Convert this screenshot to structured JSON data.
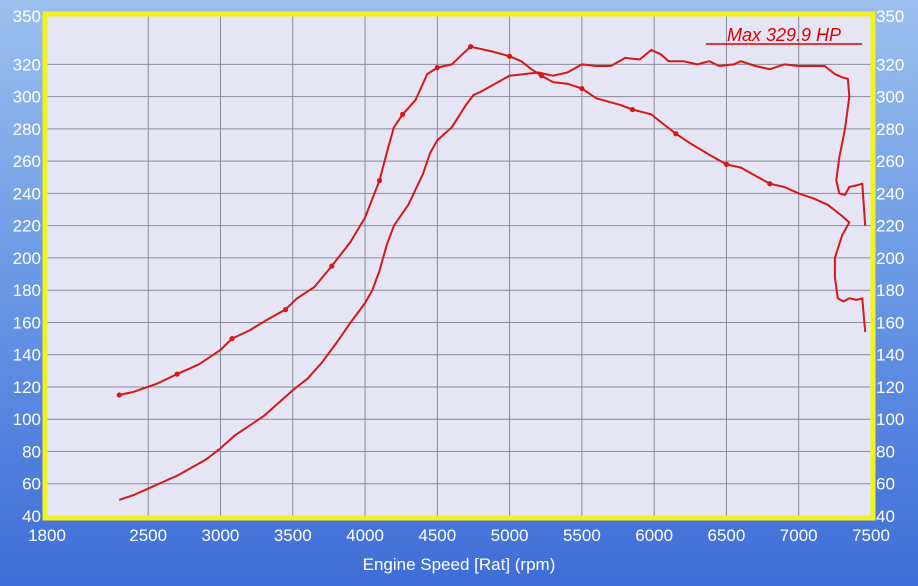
{
  "chart_data": {
    "type": "line",
    "xlabel": "Engine Speed [Rat] (rpm)",
    "ylabel": "",
    "xlim": [
      1800,
      7500
    ],
    "ylim": [
      40,
      350
    ],
    "x_ticks": [
      1800,
      2500,
      3000,
      3500,
      4000,
      4500,
      5000,
      5500,
      6000,
      6500,
      7000,
      7500
    ],
    "y_ticks": [
      40,
      60,
      80,
      100,
      120,
      140,
      160,
      180,
      200,
      220,
      240,
      260,
      280,
      300,
      320,
      350
    ],
    "annotation": "Max 329.9 HP",
    "grid": true,
    "colors": {
      "line": "#d51818",
      "plot_bg": "#e5e5f6",
      "frame": "#f2f21e",
      "grid": "#8a8a9a",
      "annotation": "#e00000"
    },
    "series": [
      {
        "values": [
          [
            2300,
            115
          ],
          [
            2400,
            117
          ],
          [
            2560,
            122
          ],
          [
            2700,
            128
          ],
          [
            2850,
            134
          ],
          [
            3000,
            143
          ],
          [
            3080,
            150
          ],
          [
            3200,
            155
          ],
          [
            3310,
            161
          ],
          [
            3450,
            168
          ],
          [
            3530,
            175
          ],
          [
            3650,
            182
          ],
          [
            3770,
            195
          ],
          [
            3900,
            210
          ],
          [
            4000,
            225
          ],
          [
            4100,
            248
          ],
          [
            4150,
            265
          ],
          [
            4200,
            281
          ],
          [
            4260,
            289
          ],
          [
            4350,
            298
          ],
          [
            4430,
            314
          ],
          [
            4500,
            318
          ],
          [
            4600,
            320
          ],
          [
            4670,
            326
          ],
          [
            4730,
            331
          ],
          [
            4780,
            330
          ],
          [
            4880,
            328
          ],
          [
            5000,
            325
          ],
          [
            5080,
            322
          ],
          [
            5150,
            317
          ],
          [
            5220,
            313
          ],
          [
            5300,
            309
          ],
          [
            5400,
            308
          ],
          [
            5500,
            305
          ],
          [
            5600,
            299
          ],
          [
            5760,
            295
          ],
          [
            5850,
            292
          ],
          [
            5980,
            289
          ],
          [
            6050,
            284
          ],
          [
            6150,
            277
          ],
          [
            6250,
            271
          ],
          [
            6400,
            263
          ],
          [
            6500,
            258
          ],
          [
            6600,
            256
          ],
          [
            6700,
            251
          ],
          [
            6800,
            246
          ],
          [
            6900,
            244
          ],
          [
            7000,
            240
          ],
          [
            7100,
            237
          ],
          [
            7200,
            233
          ],
          [
            7300,
            226
          ],
          [
            7350,
            222
          ],
          [
            7300,
            214
          ],
          [
            7250,
            200
          ],
          [
            7250,
            188
          ],
          [
            7270,
            175
          ],
          [
            7310,
            173
          ],
          [
            7350,
            175
          ],
          [
            7400,
            174
          ],
          [
            7440,
            175
          ],
          [
            7460,
            154
          ]
        ]
      },
      {
        "values": [
          [
            2300,
            50
          ],
          [
            2400,
            53
          ],
          [
            2500,
            57
          ],
          [
            2600,
            61
          ],
          [
            2700,
            65
          ],
          [
            2800,
            70
          ],
          [
            2900,
            75
          ],
          [
            3000,
            82
          ],
          [
            3100,
            90
          ],
          [
            3200,
            96
          ],
          [
            3300,
            102
          ],
          [
            3400,
            110
          ],
          [
            3500,
            118
          ],
          [
            3600,
            125
          ],
          [
            3700,
            135
          ],
          [
            3800,
            147
          ],
          [
            3900,
            160
          ],
          [
            4000,
            172
          ],
          [
            4050,
            180
          ],
          [
            4100,
            192
          ],
          [
            4150,
            208
          ],
          [
            4200,
            220
          ],
          [
            4300,
            233
          ],
          [
            4400,
            252
          ],
          [
            4450,
            265
          ],
          [
            4500,
            273
          ],
          [
            4600,
            281
          ],
          [
            4650,
            288
          ],
          [
            4700,
            295
          ],
          [
            4750,
            301
          ],
          [
            4800,
            303
          ],
          [
            4900,
            308
          ],
          [
            5000,
            313
          ],
          [
            5100,
            314
          ],
          [
            5200,
            315
          ],
          [
            5300,
            313
          ],
          [
            5400,
            315
          ],
          [
            5500,
            320
          ],
          [
            5600,
            319
          ],
          [
            5700,
            319
          ],
          [
            5800,
            324
          ],
          [
            5900,
            323
          ],
          [
            5980,
            329
          ],
          [
            6050,
            326
          ],
          [
            6100,
            322
          ],
          [
            6200,
            322
          ],
          [
            6300,
            320
          ],
          [
            6380,
            322
          ],
          [
            6450,
            319
          ],
          [
            6550,
            320
          ],
          [
            6600,
            322
          ],
          [
            6700,
            319
          ],
          [
            6800,
            317
          ],
          [
            6900,
            320
          ],
          [
            7000,
            319
          ],
          [
            7100,
            319
          ],
          [
            7180,
            319
          ],
          [
            7250,
            314
          ],
          [
            7300,
            312
          ],
          [
            7340,
            311
          ],
          [
            7350,
            300
          ],
          [
            7320,
            280
          ],
          [
            7280,
            262
          ],
          [
            7260,
            248
          ],
          [
            7280,
            240
          ],
          [
            7320,
            239
          ],
          [
            7350,
            244
          ],
          [
            7400,
            245
          ],
          [
            7440,
            246
          ],
          [
            7460,
            220
          ]
        ]
      }
    ]
  }
}
